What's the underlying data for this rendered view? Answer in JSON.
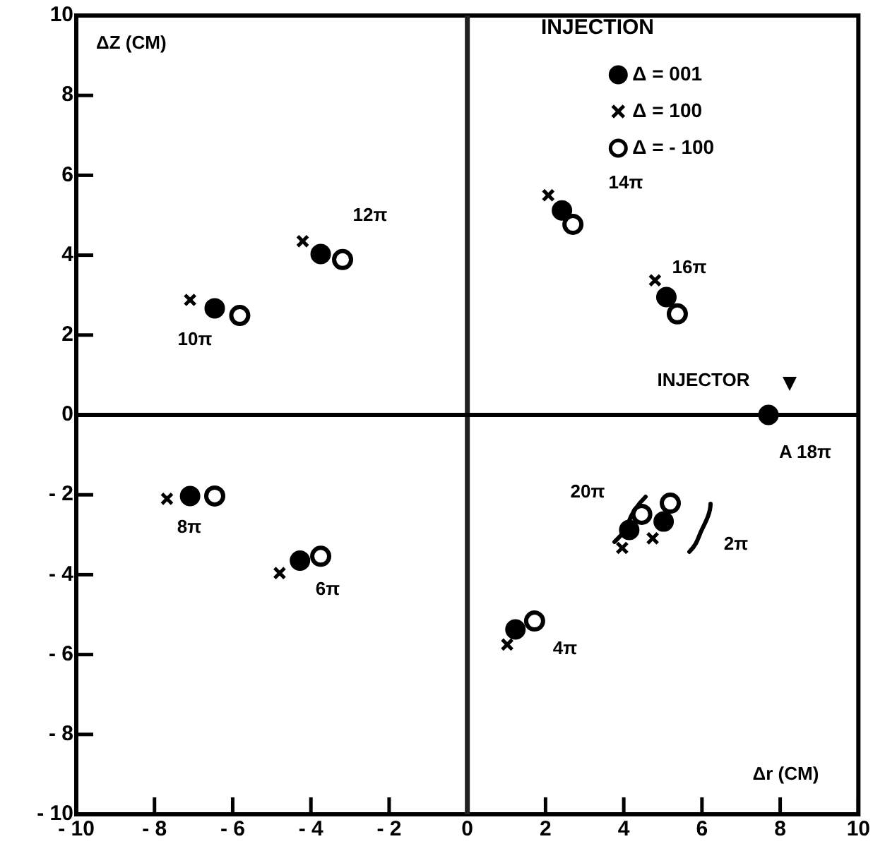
{
  "chart_data": {
    "type": "scatter",
    "xlabel": "Δr (CM)",
    "ylabel": "ΔZ (CM)",
    "xlim": [
      -10,
      10
    ],
    "ylim": [
      -10,
      10
    ],
    "xticks": [
      -10,
      -8,
      -6,
      -4,
      -2,
      0,
      2,
      4,
      6,
      8,
      10
    ],
    "yticks": [
      -10,
      -8,
      -6,
      -4,
      -2,
      0,
      2,
      4,
      6,
      8,
      10
    ],
    "legend": "top right",
    "ref_lines": [
      {
        "axis": "x",
        "value": 0,
        "color": "#222222"
      },
      {
        "axis": "y",
        "value": 0,
        "color": "#000000"
      }
    ],
    "series": [
      {
        "name": "Δ = 001",
        "color": "#000000",
        "marker": "circle",
        "x": [
          -6.46,
          -3.75,
          2.42,
          5.09,
          -7.09,
          -4.28,
          4.14,
          5.02,
          1.23
        ],
        "values": [
          2.67,
          4.03,
          5.12,
          2.95,
          -2.03,
          -3.65,
          -2.88,
          -2.67,
          -5.37
        ]
      },
      {
        "name": "Δ = 100",
        "color": "#000000",
        "marker": "cross",
        "x": [
          -7.09,
          -4.21,
          2.07,
          4.8,
          -7.68,
          -4.8,
          3.96,
          4.74,
          1.02
        ],
        "values": [
          2.88,
          4.35,
          5.5,
          3.37,
          -2.1,
          -3.96,
          -3.33,
          -3.09,
          -5.75
        ]
      },
      {
        "name": "Δ = - 100",
        "color": "#ffffff",
        "marker": "circle",
        "x": [
          -5.82,
          -3.19,
          2.7,
          5.37,
          -6.46,
          -3.75,
          4.46,
          5.19,
          1.72
        ],
        "values": [
          2.49,
          3.89,
          4.77,
          2.53,
          -2.03,
          -3.54,
          -2.49,
          -2.21,
          -5.16
        ]
      },
      {
        "color": "#000000",
        "marker": "circle",
        "x": [
          7.7
        ],
        "values": [
          0
        ]
      }
    ],
    "annotations": [
      "INJECTION",
      "10π",
      "12π",
      "14π",
      "16π",
      "INJECTOR",
      "A 18π",
      "20π",
      "2π",
      "8π",
      "6π",
      "4π"
    ]
  }
}
